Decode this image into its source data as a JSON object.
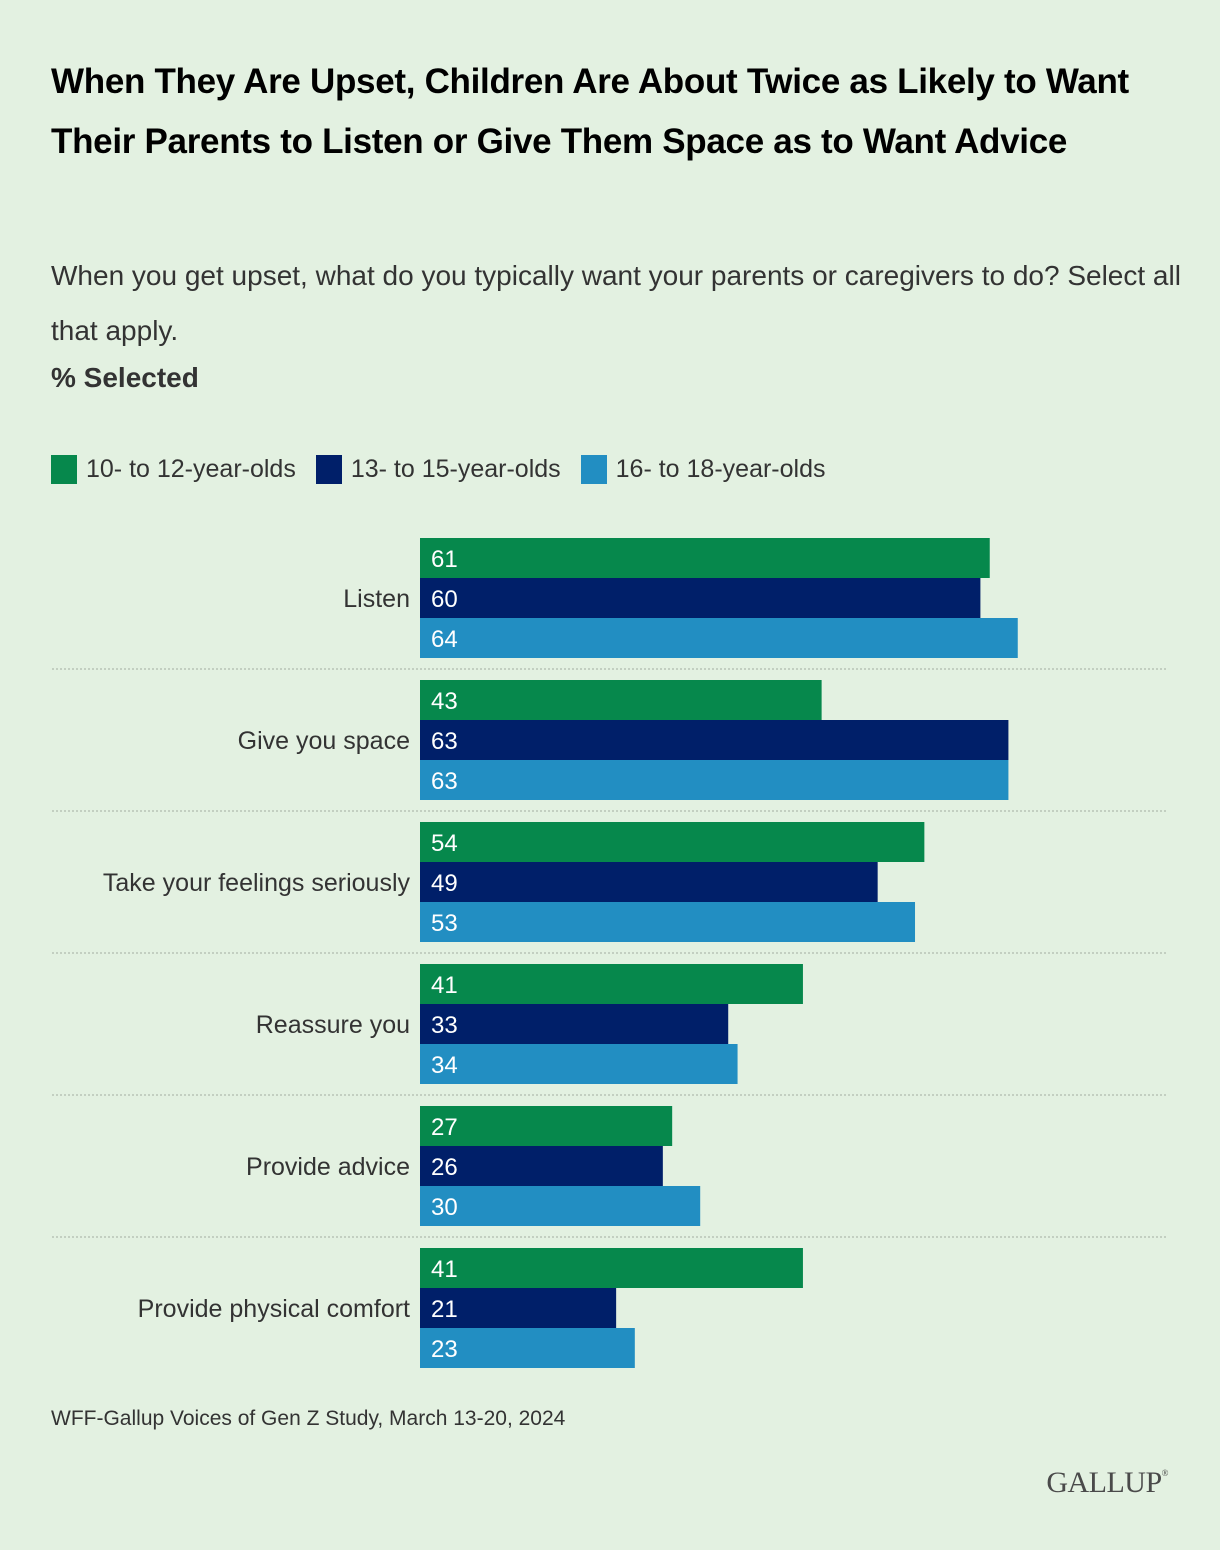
{
  "header": {
    "title": "When They Are Upset, Children Are About Twice as Likely to Want Their Parents to Listen or Give Them Space as to Want Advice",
    "subtitle": "When you get upset, what do you typically want your parents or caregivers to do? Select all that apply.",
    "unit_label": "% Selected"
  },
  "footer": {
    "source": "WFF-Gallup Voices of Gen Z Study, March 13-20, 2024",
    "logo": "GALLUP",
    "logo_mark": "®"
  },
  "chart_data": {
    "type": "bar",
    "orientation": "horizontal",
    "title": "When They Are Upset, Children Are About Twice as Likely to Want Their Parents to Listen or Give Them Space as to Want Advice",
    "subtitle": "When you get upset, what do you typically want your parents or caregivers to do? Select all that apply.",
    "xlabel": "% Selected",
    "ylabel": "",
    "xlim": [
      0,
      100
    ],
    "grid": false,
    "legend_position": "top-left",
    "categories": [
      "Listen",
      "Give you space",
      "Take your feelings seriously",
      "Reassure you",
      "Provide advice",
      "Provide physical comfort"
    ],
    "series": [
      {
        "name": "10- to 12-year-olds",
        "color": "#06884c",
        "values": [
          61,
          43,
          54,
          41,
          27,
          41
        ]
      },
      {
        "name": "13- to 15-year-olds",
        "color": "#001f69",
        "values": [
          60,
          63,
          49,
          33,
          26,
          21
        ]
      },
      {
        "name": "16- to 18-year-olds",
        "color": "#228ec2",
        "values": [
          64,
          63,
          53,
          34,
          30,
          23
        ]
      }
    ],
    "data_label_color": "#ffffff",
    "divider_color": "#c3cfc1"
  }
}
